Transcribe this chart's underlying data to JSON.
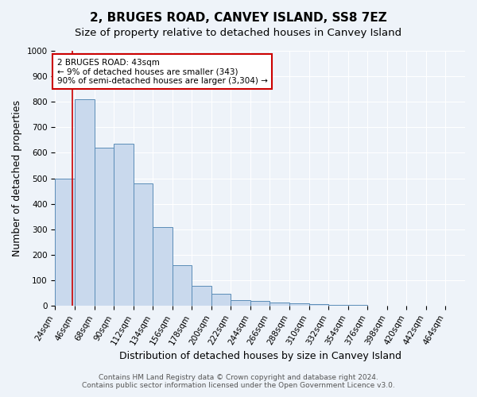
{
  "title": "2, BRUGES ROAD, CANVEY ISLAND, SS8 7EZ",
  "subtitle": "Size of property relative to detached houses in Canvey Island",
  "xlabel": "Distribution of detached houses by size in Canvey Island",
  "ylabel": "Number of detached properties",
  "bin_labels": [
    "24sqm",
    "46sqm",
    "68sqm",
    "90sqm",
    "112sqm",
    "134sqm",
    "156sqm",
    "178sqm",
    "200sqm",
    "222sqm",
    "244sqm",
    "266sqm",
    "288sqm",
    "310sqm",
    "332sqm",
    "354sqm",
    "376sqm",
    "398sqm",
    "420sqm",
    "442sqm",
    "464sqm"
  ],
  "bar_values": [
    500,
    810,
    620,
    635,
    480,
    310,
    160,
    80,
    47,
    22,
    20,
    12,
    10,
    7,
    5,
    3,
    2,
    2,
    1,
    1,
    0
  ],
  "bar_color": "#c9d9ed",
  "bar_edge_color": "#5b8db8",
  "ylim": [
    0,
    1000
  ],
  "yticks": [
    0,
    100,
    200,
    300,
    400,
    500,
    600,
    700,
    800,
    900,
    1000
  ],
  "property_line_x": 43,
  "property_line_color": "#cc0000",
  "annotation_title": "2 BRUGES ROAD: 43sqm",
  "annotation_line1": "← 9% of detached houses are smaller (343)",
  "annotation_line2": "90% of semi-detached houses are larger (3,304) →",
  "annotation_box_color": "#ffffff",
  "annotation_box_edge": "#cc0000",
  "footer_line1": "Contains HM Land Registry data © Crown copyright and database right 2024.",
  "footer_line2": "Contains public sector information licensed under the Open Government Licence v3.0.",
  "bg_color": "#eef3f9",
  "plot_bg_color": "#eef3f9",
  "grid_color": "#ffffff",
  "title_fontsize": 11,
  "subtitle_fontsize": 9.5,
  "axis_label_fontsize": 9,
  "tick_fontsize": 7.5,
  "footer_fontsize": 6.5,
  "bin_edges": [
    24,
    46,
    68,
    90,
    112,
    134,
    156,
    178,
    200,
    222,
    244,
    266,
    288,
    310,
    332,
    354,
    376,
    398,
    420,
    442,
    464
  ]
}
